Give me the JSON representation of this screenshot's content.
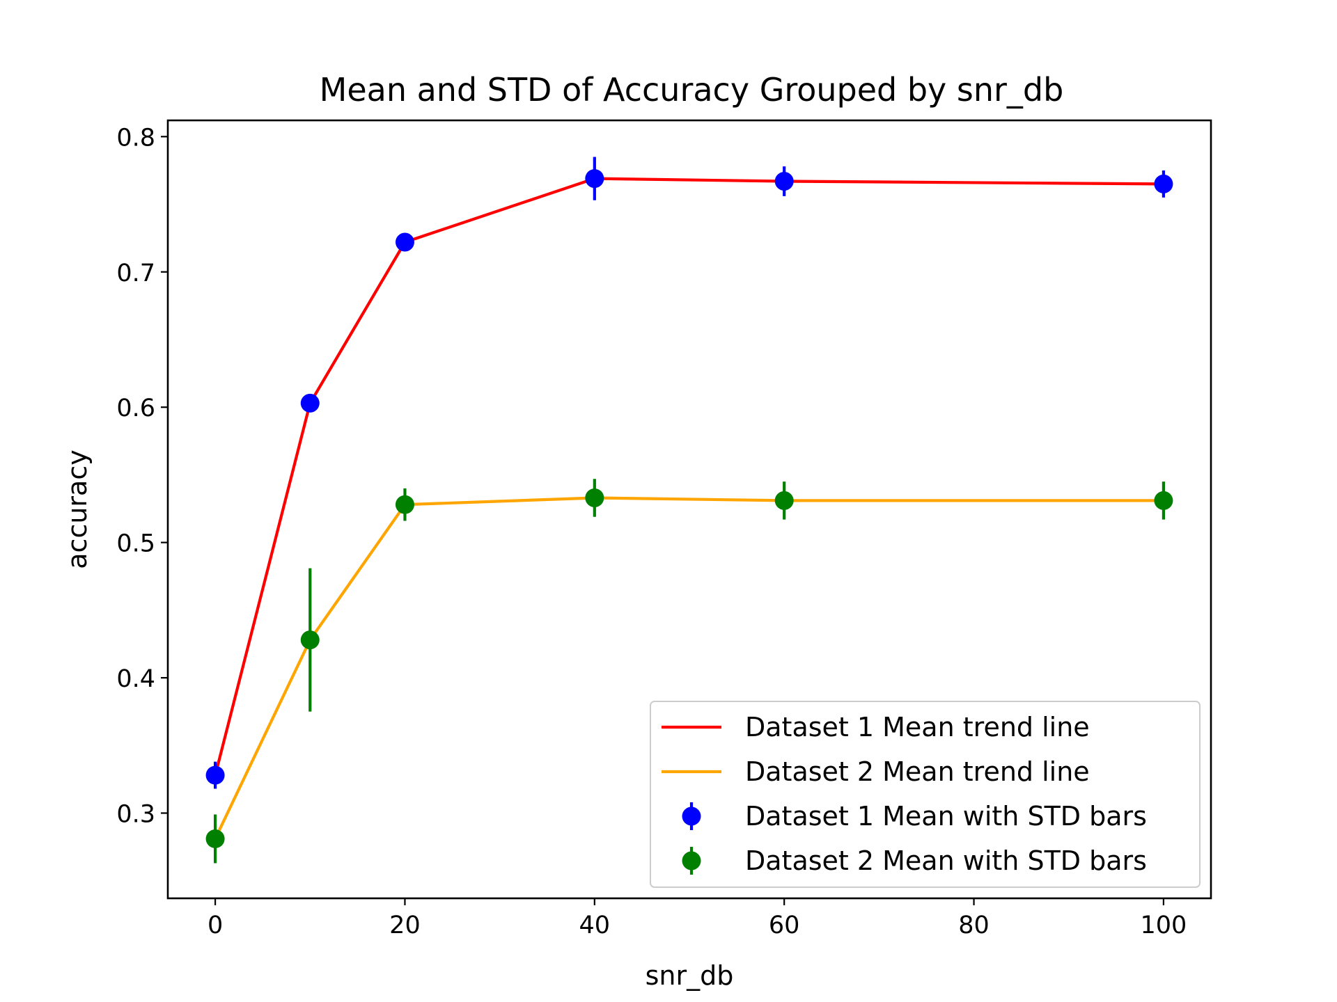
{
  "chart_data": {
    "type": "line",
    "title": "Mean and STD of Accuracy Grouped by snr_db",
    "xlabel": "snr_db",
    "ylabel": "accuracy",
    "xlim": [
      -5,
      105
    ],
    "ylim": [
      0.237,
      0.812
    ],
    "xticks": [
      0,
      20,
      40,
      60,
      80,
      100
    ],
    "yticks": [
      0.3,
      0.4,
      0.5,
      0.6,
      0.7,
      0.8
    ],
    "grid": false,
    "legend_position": "lower-right",
    "x": [
      0,
      10,
      20,
      40,
      60,
      100
    ],
    "series": [
      {
        "name": "Dataset 1 Mean trend line",
        "kind": "line",
        "color": "#ff0000",
        "values": [
          0.328,
          0.603,
          0.722,
          0.769,
          0.767,
          0.765
        ]
      },
      {
        "name": "Dataset 2 Mean trend line",
        "kind": "line",
        "color": "#ffa500",
        "values": [
          0.281,
          0.428,
          0.528,
          0.533,
          0.531,
          0.531
        ]
      },
      {
        "name": "Dataset 1 Mean with STD bars",
        "kind": "errorbar",
        "color": "#0000ff",
        "values": [
          0.328,
          0.603,
          0.722,
          0.769,
          0.767,
          0.765
        ],
        "std": [
          0.01,
          0.003,
          0.003,
          0.016,
          0.011,
          0.01
        ]
      },
      {
        "name": "Dataset 2 Mean with STD bars",
        "kind": "errorbar",
        "color": "#008000",
        "values": [
          0.281,
          0.428,
          0.528,
          0.533,
          0.531,
          0.531
        ],
        "std": [
          0.018,
          0.053,
          0.012,
          0.014,
          0.014,
          0.014
        ]
      }
    ]
  }
}
